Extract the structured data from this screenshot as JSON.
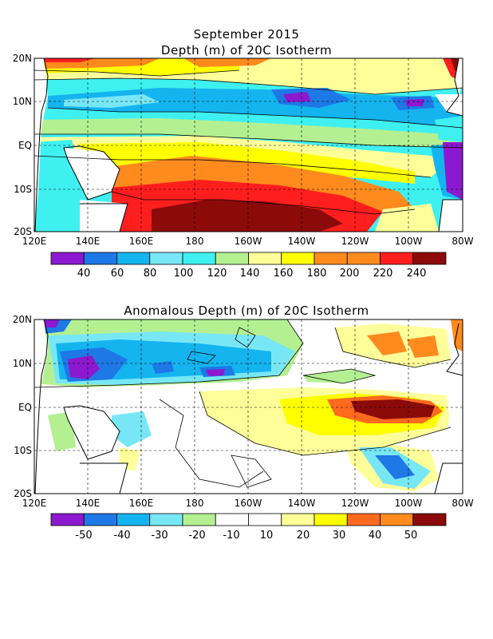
{
  "top": {
    "title_line1": "September 2015",
    "title_line2": "Depth (m) of 20C Isotherm"
  },
  "bottom": {
    "title": "Anomalous Depth (m) of 20C Isotherm"
  },
  "axes": {
    "lat_labels": [
      "20N",
      "10N",
      "EQ",
      "10S",
      "20S"
    ],
    "lon_labels": [
      "120E",
      "140E",
      "160E",
      "180",
      "160W",
      "140W",
      "120W",
      "100W",
      "80W"
    ]
  },
  "colorbar_top": {
    "colors": [
      "#8c19cf",
      "#1e78e6",
      "#14b4ef",
      "#78e7f5",
      "#3ff0f0",
      "#b4f092",
      "#ffff9a",
      "#ffff00",
      "#ff8a1e",
      "#ff8a1e",
      "#ff1e1e",
      "#8c0a0a"
    ],
    "labels": [
      "40",
      "60",
      "80",
      "100",
      "120",
      "140",
      "160",
      "180",
      "200",
      "220",
      "240"
    ]
  },
  "colorbar_bottom": {
    "colors": [
      "#8c19cf",
      "#1e78e6",
      "#14b4ef",
      "#78e7f5",
      "#b4f092",
      "#ffffff",
      "#ffffff",
      "#ffff9a",
      "#ffff00",
      "#ff6a1e",
      "#ff8a1e",
      "#8c0a0a"
    ],
    "labels": [
      "-50",
      "-40",
      "-30",
      "-20",
      "-10",
      "10",
      "20",
      "30",
      "40",
      "50"
    ]
  }
}
